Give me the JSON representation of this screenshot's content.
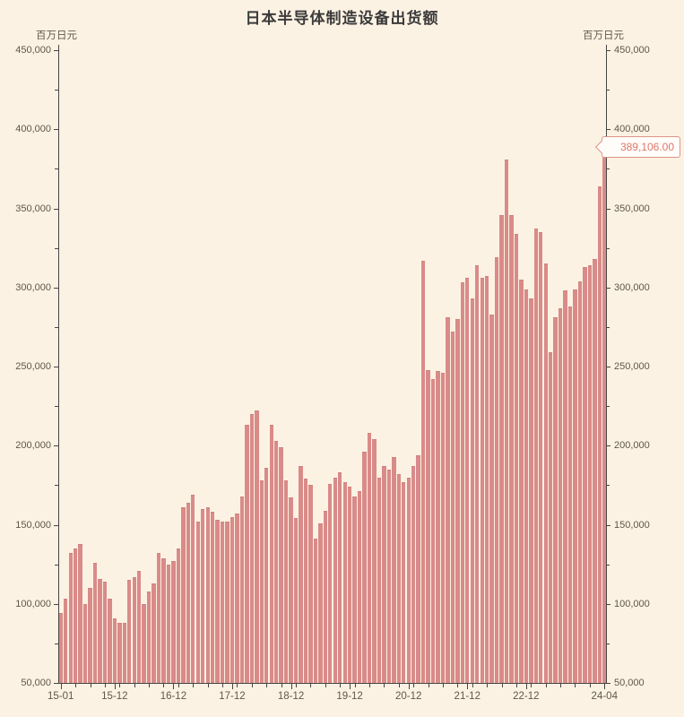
{
  "header": {
    "title": "日本半导体制造设备出货额"
  },
  "axes": {
    "unit_left": "百万日元",
    "unit_right": "百万日元",
    "y_tick_labels": [
      "50,000",
      "100,000",
      "150,000",
      "200,000",
      "250,000",
      "300,000",
      "350,000",
      "400,000",
      "450,000"
    ],
    "x_tick_labels": [
      "15-01",
      "15-12",
      "16-12",
      "17-12",
      "18-12",
      "19-12",
      "20-12",
      "21-12",
      "22-12",
      "24-04"
    ],
    "x_tick_month_indices": [
      0,
      11,
      23,
      35,
      47,
      59,
      71,
      83,
      95,
      111
    ]
  },
  "tooltip": {
    "text": "389,106.00",
    "points_to": "2024-04"
  },
  "colors": {
    "background": "#fcf2e3",
    "bar": "#d98b89",
    "bar_edge": "#cf807e",
    "axis": "#454545",
    "tick_text": "#60564a",
    "title_text": "#3b3b3b",
    "tooltip_text": "#e0766a",
    "tooltip_border": "#dd9488"
  },
  "chart_data": {
    "type": "bar",
    "title": "日本半导体制造设备出货额",
    "xlabel": "",
    "ylabel": "百万日元",
    "ylim": [
      50000,
      450000
    ],
    "y_tick_step": 50000,
    "y_minor_tick_step": 25000,
    "x_minor_tick_every_months": 3,
    "grid": false,
    "legend_position": "none",
    "categories": [
      "2015-01",
      "2015-02",
      "2015-03",
      "2015-04",
      "2015-05",
      "2015-06",
      "2015-07",
      "2015-08",
      "2015-09",
      "2015-10",
      "2015-11",
      "2015-12",
      "2016-01",
      "2016-02",
      "2016-03",
      "2016-04",
      "2016-05",
      "2016-06",
      "2016-07",
      "2016-08",
      "2016-09",
      "2016-10",
      "2016-11",
      "2016-12",
      "2017-01",
      "2017-02",
      "2017-03",
      "2017-04",
      "2017-05",
      "2017-06",
      "2017-07",
      "2017-08",
      "2017-09",
      "2017-10",
      "2017-11",
      "2017-12",
      "2018-01",
      "2018-02",
      "2018-03",
      "2018-04",
      "2018-05",
      "2018-06",
      "2018-07",
      "2018-08",
      "2018-09",
      "2018-10",
      "2018-11",
      "2018-12",
      "2019-01",
      "2019-02",
      "2019-03",
      "2019-04",
      "2019-05",
      "2019-06",
      "2019-07",
      "2019-08",
      "2019-09",
      "2019-10",
      "2019-11",
      "2019-12",
      "2020-01",
      "2020-02",
      "2020-03",
      "2020-04",
      "2020-05",
      "2020-06",
      "2020-07",
      "2020-08",
      "2020-09",
      "2020-10",
      "2020-11",
      "2020-12",
      "2021-01",
      "2021-02",
      "2021-03",
      "2021-04",
      "2021-05",
      "2021-06",
      "2021-07",
      "2021-08",
      "2021-09",
      "2021-10",
      "2021-11",
      "2021-12",
      "2022-01",
      "2022-02",
      "2022-03",
      "2022-04",
      "2022-05",
      "2022-06",
      "2022-07",
      "2022-08",
      "2022-09",
      "2022-10",
      "2022-11",
      "2022-12",
      "2023-01",
      "2023-02",
      "2023-03",
      "2023-04",
      "2023-05",
      "2023-06",
      "2023-07",
      "2023-08",
      "2023-09",
      "2023-10",
      "2023-11",
      "2023-12",
      "2024-01",
      "2024-02",
      "2024-03",
      "2024-04"
    ],
    "values": [
      94000,
      103000,
      132000,
      135000,
      138000,
      100000,
      110000,
      126000,
      116000,
      114000,
      103000,
      91000,
      88000,
      88000,
      115000,
      117000,
      121000,
      100000,
      108000,
      113000,
      132000,
      129000,
      125000,
      127000,
      135000,
      161000,
      164000,
      169000,
      152000,
      160000,
      161000,
      158000,
      153000,
      152000,
      152000,
      155000,
      157000,
      168000,
      213000,
      220000,
      222000,
      178000,
      186000,
      213000,
      203000,
      199000,
      178000,
      167000,
      154000,
      187000,
      179000,
      175000,
      141000,
      151000,
      159000,
      176000,
      180000,
      183000,
      177000,
      174000,
      168000,
      171000,
      196000,
      208000,
      204000,
      180000,
      187000,
      185000,
      193000,
      182000,
      177000,
      180000,
      187000,
      194000,
      317000,
      248000,
      242000,
      247000,
      246000,
      281000,
      272000,
      280000,
      303000,
      306000,
      293000,
      314000,
      306000,
      307000,
      283000,
      319000,
      346000,
      381000,
      346000,
      334000,
      305000,
      299000,
      293000,
      337000,
      335000,
      315000,
      259000,
      281000,
      287000,
      298000,
      288000,
      299000,
      304000,
      313000,
      314000,
      318000,
      364000,
      389106
    ],
    "last_point": {
      "category": "2024-04",
      "value": 389106,
      "label": "389,106.00"
    }
  }
}
